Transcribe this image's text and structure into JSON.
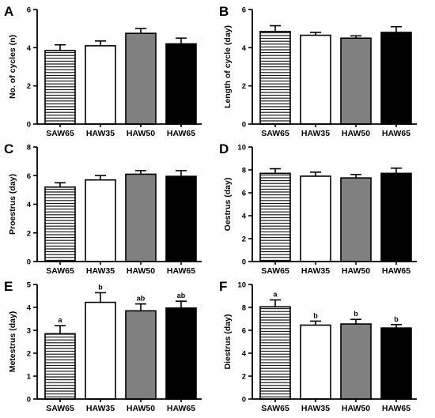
{
  "categories": [
    "SAW65",
    "HAW35",
    "HAW50",
    "HAW65"
  ],
  "series_styles": [
    {
      "fill": "stripes",
      "color": "#000000"
    },
    {
      "fill": "solid",
      "color": "#ffffff"
    },
    {
      "fill": "solid",
      "color": "#808080"
    },
    {
      "fill": "solid",
      "color": "#000000"
    }
  ],
  "chart_data": [
    {
      "type": "bar",
      "panel": "A",
      "ylabel": "No. of cycles (n)",
      "ylim": [
        0,
        6
      ],
      "yticks": [
        0,
        2,
        4,
        6
      ],
      "categories": [
        "SAW65",
        "HAW35",
        "HAW50",
        "HAW65"
      ],
      "values": [
        3.85,
        4.1,
        4.75,
        4.2
      ],
      "errors": [
        0.3,
        0.25,
        0.25,
        0.3
      ],
      "labels": []
    },
    {
      "type": "bar",
      "panel": "B",
      "ylabel": "Length of cycle (day)",
      "ylim": [
        0,
        6
      ],
      "yticks": [
        0,
        2,
        4,
        6
      ],
      "categories": [
        "SAW65",
        "HAW35",
        "HAW50",
        "HAW65"
      ],
      "values": [
        4.85,
        4.65,
        4.5,
        4.8
      ],
      "errors": [
        0.3,
        0.15,
        0.12,
        0.3
      ],
      "labels": []
    },
    {
      "type": "bar",
      "panel": "C",
      "ylabel": "Proestrus (day)",
      "ylim": [
        0,
        8
      ],
      "yticks": [
        0,
        2,
        4,
        6,
        8
      ],
      "categories": [
        "SAW65",
        "HAW35",
        "HAW50",
        "HAW65"
      ],
      "values": [
        5.2,
        5.7,
        6.1,
        5.95
      ],
      "errors": [
        0.3,
        0.3,
        0.25,
        0.4
      ],
      "labels": []
    },
    {
      "type": "bar",
      "panel": "D",
      "ylabel": "Oestrus (day)",
      "ylim": [
        0,
        10
      ],
      "yticks": [
        0,
        2,
        4,
        6,
        8,
        10
      ],
      "categories": [
        "SAW65",
        "HAW35",
        "HAW50",
        "HAW65"
      ],
      "values": [
        7.7,
        7.45,
        7.3,
        7.7
      ],
      "errors": [
        0.4,
        0.35,
        0.3,
        0.45
      ],
      "labels": []
    },
    {
      "type": "bar",
      "panel": "E",
      "ylabel": "Metestrus (day)",
      "ylim": [
        0,
        5
      ],
      "yticks": [
        0,
        1,
        2,
        3,
        4,
        5
      ],
      "categories": [
        "SAW65",
        "HAW35",
        "HAW50",
        "HAW65"
      ],
      "values": [
        2.85,
        4.22,
        3.85,
        3.97
      ],
      "errors": [
        0.35,
        0.42,
        0.3,
        0.3
      ],
      "labels": [
        "a",
        "b",
        "ab",
        "ab"
      ]
    },
    {
      "type": "bar",
      "panel": "F",
      "ylabel": "Diestrus (day)",
      "ylim": [
        0,
        10
      ],
      "yticks": [
        0,
        2,
        4,
        6,
        8,
        10
      ],
      "categories": [
        "SAW65",
        "HAW35",
        "HAW50",
        "HAW65"
      ],
      "values": [
        8.05,
        6.45,
        6.55,
        6.2
      ],
      "errors": [
        0.6,
        0.35,
        0.4,
        0.3
      ],
      "labels": [
        "a",
        "b",
        "b",
        "b"
      ]
    }
  ]
}
